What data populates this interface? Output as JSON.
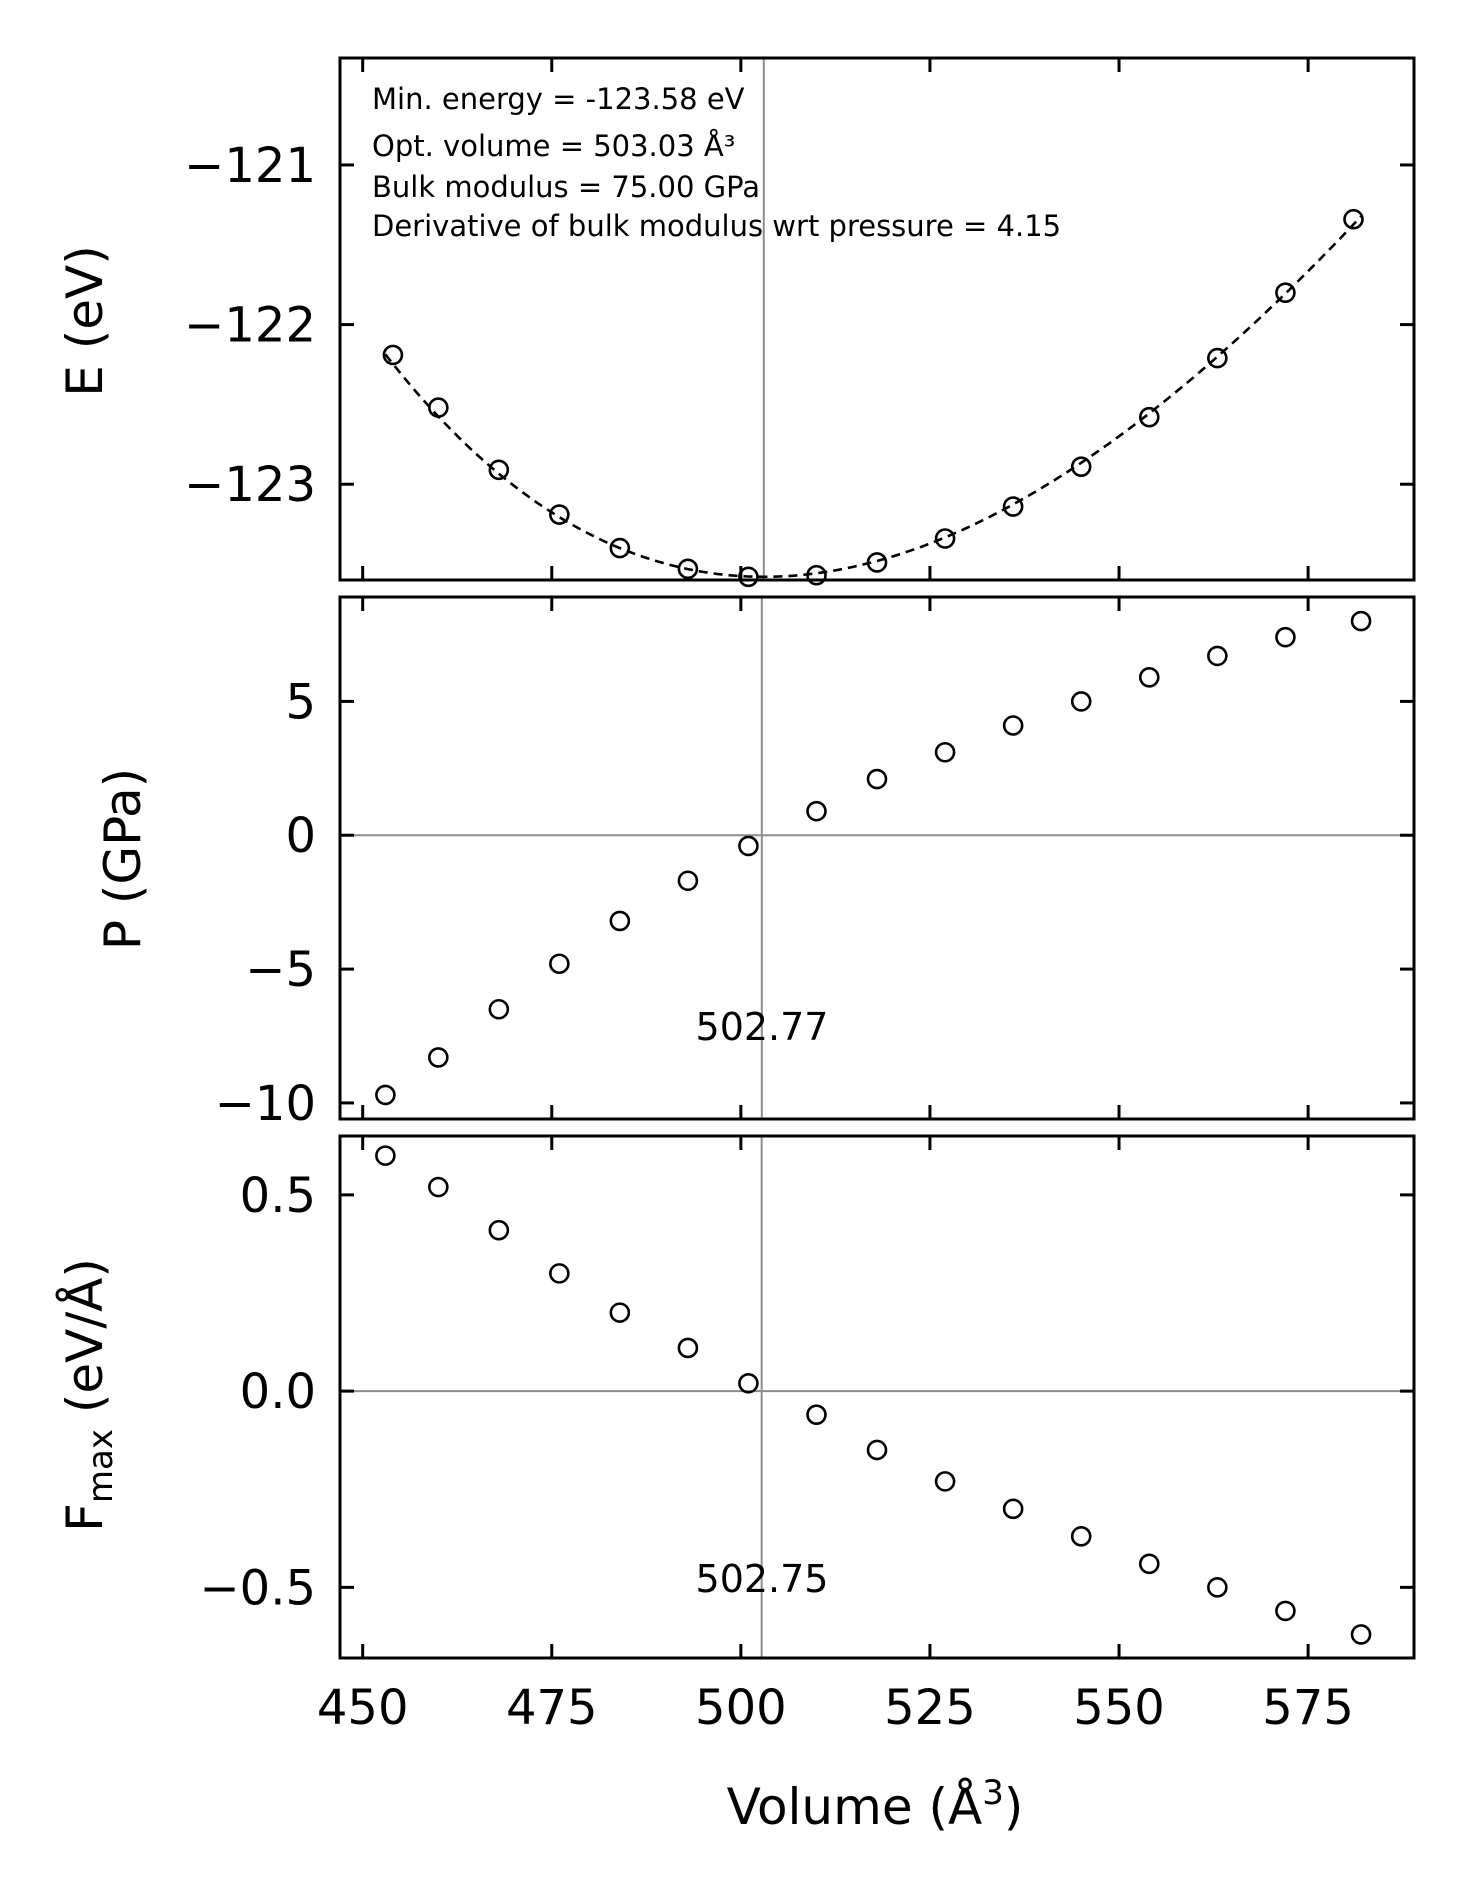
{
  "chart_data": [
    {
      "type": "scatter",
      "ylabel": "E (eV)",
      "xlabel": "",
      "xlim": [
        447,
        589
      ],
      "ylim": [
        -123.6,
        -120.33
      ],
      "yticks": [
        -121,
        -122,
        -123
      ],
      "ytick_labels": [
        "−121",
        "−122",
        "−123"
      ],
      "vline_x": 503.03,
      "annotations": [
        "Min. energy = -123.58 eV",
        "Opt. volume = 503.03 Å³",
        "Bulk modulus = 75.00 GPa",
        "Derivative of bulk modulus wrt pressure = 4.15"
      ],
      "fit": {
        "style": "dashed",
        "E0": -123.58,
        "V0": 503.03,
        "B0_GPa": 75.0,
        "B0_prime": 4.15,
        "x_range": [
          453,
          582
        ]
      },
      "x": [
        454,
        460,
        468,
        476,
        484,
        493,
        501,
        510,
        518,
        527,
        536,
        545,
        554,
        563,
        572,
        581
      ],
      "y": [
        -122.19,
        -122.52,
        -122.91,
        -123.19,
        -123.4,
        -123.53,
        -123.58,
        -123.57,
        -123.49,
        -123.34,
        -123.14,
        -122.89,
        -122.58,
        -122.21,
        -121.8,
        -121.34
      ]
    },
    {
      "type": "scatter",
      "ylabel": "P (GPa)",
      "xlabel": "",
      "xlim": [
        447,
        589
      ],
      "ylim": [
        -10.6,
        8.9
      ],
      "yticks": [
        5,
        0,
        -5,
        -10
      ],
      "ytick_labels": [
        "5",
        "0",
        "−5",
        "−10"
      ],
      "vline_x": 502.77,
      "hline_y": 0,
      "vline_label": "502.77",
      "x": [
        453,
        460,
        468,
        476,
        484,
        493,
        501,
        510,
        518,
        527,
        536,
        545,
        554,
        563,
        572,
        582
      ],
      "y": [
        -9.7,
        -8.3,
        -6.5,
        -4.8,
        -3.2,
        -1.7,
        -0.4,
        0.9,
        2.1,
        3.1,
        4.1,
        5.0,
        5.9,
        6.7,
        7.4,
        8.0
      ]
    },
    {
      "type": "scatter",
      "ylabel": "F_max (eV/Å)",
      "ylabel_main": "F",
      "ylabel_sub": "max",
      "ylabel_rest": " (eV/Å)",
      "xlabel": "Volume (Å³)",
      "xlabel_main": "Volume (Å",
      "xlabel_sup": "3",
      "xlabel_close": ")",
      "xlim": [
        447,
        589
      ],
      "ylim": [
        -0.68,
        0.65
      ],
      "yticks": [
        0.5,
        0.0,
        -0.5
      ],
      "ytick_labels": [
        "0.5",
        "0.0",
        "−0.5"
      ],
      "xticks": [
        450,
        475,
        500,
        525,
        550,
        575
      ],
      "xtick_labels": [
        "450",
        "475",
        "500",
        "525",
        "550",
        "575"
      ],
      "vline_x": 502.75,
      "hline_y": 0,
      "vline_label": "502.75",
      "x": [
        453,
        460,
        468,
        476,
        484,
        493,
        501,
        510,
        518,
        527,
        536,
        545,
        554,
        563,
        572,
        582
      ],
      "y": [
        0.6,
        0.52,
        0.41,
        0.3,
        0.2,
        0.11,
        0.02,
        -0.06,
        -0.15,
        -0.23,
        -0.3,
        -0.37,
        -0.44,
        -0.5,
        -0.56,
        -0.62
      ]
    }
  ]
}
